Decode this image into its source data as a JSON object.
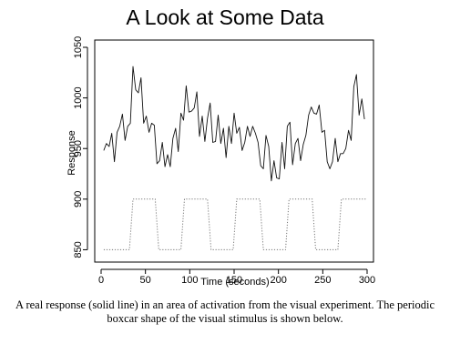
{
  "page": {
    "title": "A Look at Some Data",
    "caption": "A real response (solid line) in an area of activation from the visual experiment. The periodic boxcar shape of the visual stimulus is shown below."
  },
  "chart_data": {
    "type": "line",
    "title": "A Look at Some Data",
    "xlabel": "Time (seconds)",
    "ylabel": "Response",
    "xlim": [
      0,
      300
    ],
    "ylim": [
      845,
      1050
    ],
    "x_ticks": [
      0,
      50,
      100,
      150,
      200,
      250,
      300
    ],
    "y_ticks": [
      850,
      900,
      950,
      1000,
      1050
    ],
    "grid": false,
    "legend": "none",
    "series": [
      {
        "style": "solid",
        "x": [
          3,
          6,
          9,
          12,
          15,
          18,
          21,
          24,
          27,
          30,
          33,
          36,
          39,
          42,
          45,
          48,
          51,
          54,
          57,
          60,
          63,
          66,
          69,
          72,
          75,
          78,
          81,
          84,
          87,
          90,
          93,
          96,
          99,
          102,
          105,
          108,
          111,
          114,
          117,
          120,
          123,
          126,
          129,
          132,
          135,
          138,
          141,
          144,
          147,
          150,
          153,
          156,
          159,
          162,
          165,
          168,
          171,
          174,
          177,
          180,
          183,
          186,
          189,
          192,
          195,
          198,
          201,
          204,
          207,
          210,
          213,
          216,
          219,
          222,
          225,
          228,
          231,
          234,
          237,
          240,
          243,
          246,
          249,
          252,
          255,
          258,
          261,
          264,
          267,
          270,
          273,
          276,
          279,
          282,
          285,
          288,
          291,
          294,
          297
        ],
        "y": [
          948,
          955,
          952,
          965,
          937,
          966,
          972,
          984,
          958,
          972,
          975,
          1031,
          1008,
          1005,
          1020,
          975,
          982,
          966,
          975,
          973,
          935,
          938,
          956,
          932,
          944,
          932,
          960,
          970,
          947,
          985,
          978,
          1012,
          986,
          987,
          990,
          1006,
          962,
          982,
          957,
          980,
          995,
          956,
          957,
          983,
          955,
          970,
          941,
          972,
          955,
          985,
          965,
          971,
          948,
          956,
          972,
          962,
          972,
          965,
          956,
          933,
          930,
          963,
          952,
          918,
          938,
          921,
          920,
          956,
          930,
          972,
          976,
          934,
          955,
          960,
          938,
          954,
          963,
          983,
          991,
          985,
          984,
          993,
          966,
          968,
          937,
          930,
          937,
          960,
          937,
          945,
          945,
          950,
          968,
          958,
          1011,
          1023,
          983,
          999,
          979
        ]
      },
      {
        "style": "dotted",
        "x": [
          3,
          32,
          36,
          61,
          65,
          90,
          94,
          120,
          124,
          149,
          153,
          179,
          183,
          208,
          212,
          238,
          242,
          267,
          271,
          300
        ],
        "y": [
          850,
          850,
          900,
          900,
          850,
          850,
          900,
          900,
          850,
          850,
          900,
          900,
          850,
          850,
          900,
          900,
          850,
          850,
          900,
          900
        ]
      }
    ]
  }
}
